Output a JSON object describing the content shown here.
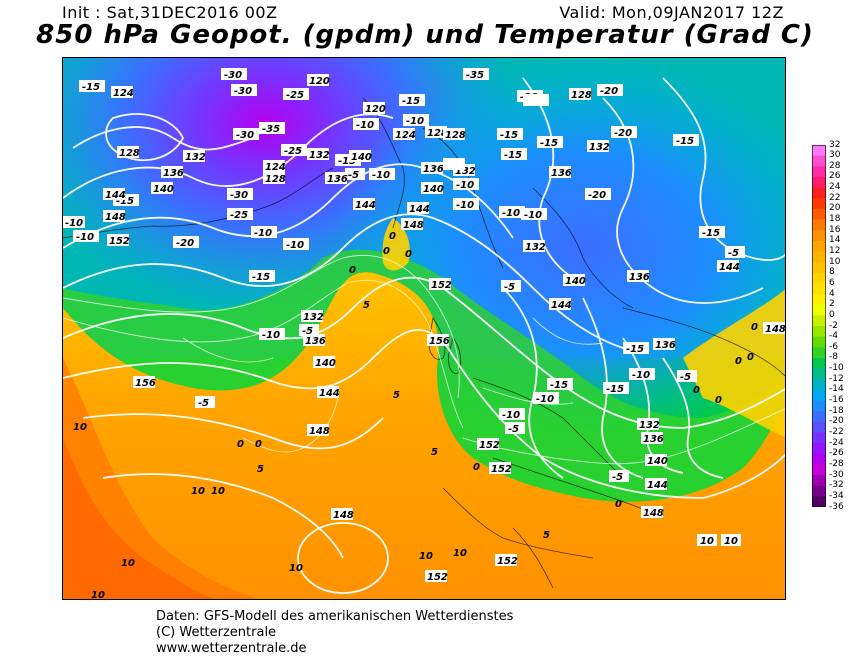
{
  "header": {
    "init": "Init : Sat,31DEC2016 00Z",
    "valid": "Valid: Mon,09JAN2017 12Z",
    "title": "850 hPa Geopot. (gpdm) und Temperatur (Grad C)"
  },
  "colorbar": {
    "values": [
      "32",
      "30",
      "28",
      "26",
      "24",
      "22",
      "20",
      "18",
      "16",
      "14",
      "12",
      "10",
      "8",
      "6",
      "4",
      "2",
      "0",
      "-2",
      "-4",
      "-6",
      "-8",
      "-10",
      "-12",
      "-14",
      "-16",
      "-18",
      "-20",
      "-22",
      "-24",
      "-26",
      "-28",
      "-30",
      "-32",
      "-34",
      "-36"
    ],
    "colors": [
      "#ff79ff",
      "#ff4fd0",
      "#ff2ca8",
      "#ff1e6e",
      "#ff2020",
      "#ff3c00",
      "#ff5a00",
      "#ff7800",
      "#ff9100",
      "#ffa500",
      "#ffb400",
      "#ffc300",
      "#ffd200",
      "#ffe100",
      "#fff000",
      "#f0ff00",
      "#c8f000",
      "#96e600",
      "#64dc00",
      "#32d228",
      "#00c850",
      "#00be8c",
      "#00b4c8",
      "#00aaf0",
      "#1e8cff",
      "#3c6eff",
      "#5a50ff",
      "#7832ff",
      "#9614ff",
      "#b400f0",
      "#c800dc",
      "#a000b4",
      "#78008c",
      "#500064"
    ]
  },
  "map_labels": {
    "geopotential": [
      "124",
      "128",
      "132",
      "136",
      "140",
      "144",
      "148",
      "152",
      "156",
      "120"
    ],
    "temperature": [
      "-35",
      "-30",
      "-25",
      "-20",
      "-15",
      "-10",
      "-5",
      "0",
      "5",
      "10"
    ]
  },
  "credits": {
    "line1": "Daten: GFS-Modell des amerikanischen Wetterdienstes",
    "line2": "(C) Wetterzentrale",
    "line3": "www.wetterzentrale.de"
  }
}
